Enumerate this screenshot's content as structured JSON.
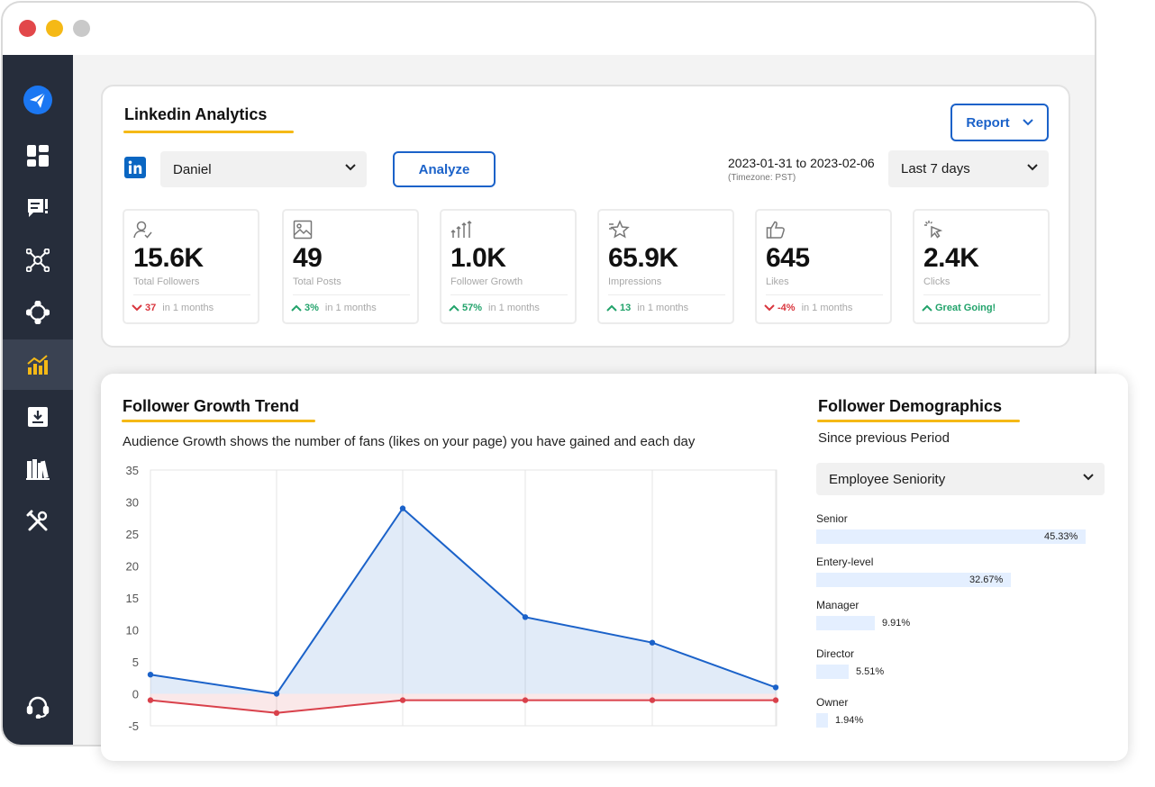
{
  "window": {
    "controls": [
      "close",
      "minimize",
      "zoom"
    ]
  },
  "sidebar": {
    "items": [
      {
        "icon": "paper-plane-icon"
      },
      {
        "icon": "dashboard-icon"
      },
      {
        "icon": "messages-icon"
      },
      {
        "icon": "network-icon"
      },
      {
        "icon": "compass-icon"
      },
      {
        "icon": "analytics-icon",
        "active": true
      },
      {
        "icon": "inbox-download-icon"
      },
      {
        "icon": "library-icon"
      },
      {
        "icon": "tools-icon"
      },
      {
        "icon": "support-headset-icon"
      }
    ]
  },
  "analytics": {
    "title": "Linkedin Analytics",
    "report_label": "Report",
    "account_icon": "linkedin-icon",
    "account": "Daniel",
    "analyze_label": "Analyze",
    "date_range": "2023-01-31 to 2023-02-06",
    "timezone": "(Timezone: PST)",
    "period": "Last 7 days"
  },
  "stats": [
    {
      "icon": "user-check-icon",
      "value": "15.6K",
      "label": "Total Followers",
      "change": "37",
      "direction": "down",
      "suffix": "in 1 months"
    },
    {
      "icon": "image-icon",
      "value": "49",
      "label": "Total Posts",
      "change": "3%",
      "direction": "up",
      "suffix": "in 1 months"
    },
    {
      "icon": "growth-arrows-icon",
      "value": "1.0K",
      "label": "Follower Growth",
      "change": "57%",
      "direction": "up",
      "suffix": "in 1 months"
    },
    {
      "icon": "star-icon",
      "value": "65.9K",
      "label": "Impressions",
      "change": "13",
      "direction": "up",
      "suffix": "in 1 months"
    },
    {
      "icon": "thumbs-up-icon",
      "value": "645",
      "label": "Likes",
      "change": "-4%",
      "direction": "down",
      "suffix": "in 1 months"
    },
    {
      "icon": "cursor-click-icon",
      "value": "2.4K",
      "label": "Clicks",
      "change": "Great Going!",
      "direction": "up",
      "suffix": ""
    }
  ],
  "trend": {
    "title": "Follower Growth Trend",
    "description": "Audience Growth shows the number of fans (likes on your page) you have gained and each day"
  },
  "chart_data": {
    "type": "area",
    "x": [
      1,
      2,
      3,
      4,
      5,
      6
    ],
    "series": [
      {
        "values": [
          3,
          0,
          29,
          12,
          8,
          1
        ],
        "color": "#1b62c9"
      },
      {
        "values": [
          -1,
          -3,
          -1,
          -1,
          -1,
          -1
        ],
        "color": "#d9414b"
      }
    ],
    "ylim": [
      -5,
      35
    ],
    "yticks": [
      35,
      30,
      25,
      20,
      15,
      10,
      5,
      0,
      -5
    ],
    "grid": true
  },
  "demographics": {
    "title": "Follower Demographics",
    "subtitle": "Since previous Period",
    "filter": "Employee Seniority",
    "items": [
      {
        "label": "Senior",
        "value": "45.33%",
        "fraction": 0.4533
      },
      {
        "label": "Entery-level",
        "value": "32.67%",
        "fraction": 0.3267
      },
      {
        "label": "Manager",
        "value": "9.91%",
        "fraction": 0.0991
      },
      {
        "label": "Director",
        "value": "5.51%",
        "fraction": 0.0551
      },
      {
        "label": "Owner",
        "value": "1.94%",
        "fraction": 0.0194
      }
    ]
  }
}
